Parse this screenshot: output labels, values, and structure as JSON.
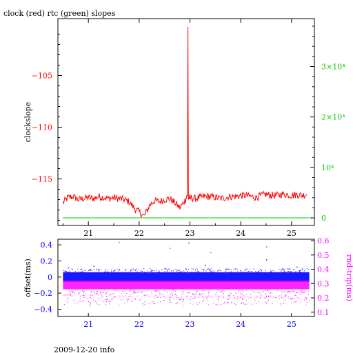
{
  "page": {
    "title": "clock (red) rtc (green) slopes",
    "footer": "2009-12-20 info"
  },
  "colors": {
    "clock": "#ff0000",
    "rtc": "#00cc00",
    "offset": "#0000ff",
    "rndtrip": "#ff00ff",
    "axis": "#000000"
  },
  "chart_data": [
    {
      "type": "line",
      "title": "clock (red) rtc (green) slopes",
      "xlabel": "",
      "ylabel": "clockslope",
      "y2label": "",
      "xlim": [
        20.4,
        25.45
      ],
      "ylim": [
        -119.5,
        -99.5
      ],
      "y2lim": [
        -1500,
        39500
      ],
      "x_ticks": [
        21,
        22,
        23,
        24,
        25
      ],
      "y_ticks": [
        -105,
        -110,
        -115
      ],
      "y2_ticks": [
        {
          "value": 0,
          "label": "0"
        },
        {
          "value": 10000,
          "label": "10⁴"
        },
        {
          "value": 20000,
          "label": "2×10⁴"
        },
        {
          "value": 30000,
          "label": "3×10⁴"
        }
      ],
      "series": [
        {
          "axis": "left",
          "color": "#ff0000",
          "x": [
            20.5,
            20.6,
            20.7,
            20.8,
            20.9,
            21.0,
            21.1,
            21.2,
            21.3,
            21.4,
            21.5,
            21.6,
            21.7,
            21.8,
            21.9,
            22.0,
            22.1,
            22.2,
            22.3,
            22.4,
            22.5,
            22.6,
            22.7,
            22.8,
            22.9,
            22.95,
            22.96,
            22.97,
            23.0,
            23.1,
            23.2,
            23.3,
            23.4,
            23.5,
            23.6,
            23.7,
            23.8,
            23.9,
            24.0,
            24.1,
            24.2,
            24.3,
            24.4,
            24.5,
            24.6,
            24.7,
            24.8,
            24.9,
            25.0,
            25.1,
            25.2,
            25.3
          ],
          "values": [
            -117.3,
            -116.8,
            -116.7,
            -117.0,
            -116.9,
            -116.8,
            -116.9,
            -116.7,
            -116.8,
            -116.9,
            -116.8,
            -116.9,
            -117.0,
            -117.2,
            -117.8,
            -118.2,
            -118.6,
            -117.6,
            -117.1,
            -117.2,
            -117.0,
            -116.9,
            -117.3,
            -117.8,
            -117.1,
            -116.6,
            -100.3,
            -116.9,
            -116.8,
            -116.9,
            -116.8,
            -116.7,
            -116.7,
            -116.8,
            -116.9,
            -116.8,
            -116.7,
            -116.7,
            -116.6,
            -116.6,
            -116.7,
            -116.8,
            -116.6,
            -116.5,
            -116.6,
            -116.6,
            -116.5,
            -116.5,
            -116.6,
            -116.5,
            -116.6,
            -116.5
          ]
        },
        {
          "axis": "right",
          "color": "#00cc00",
          "x": [
            20.5,
            25.35
          ],
          "values": [
            0,
            0
          ]
        }
      ]
    },
    {
      "type": "scatter",
      "xlabel": "",
      "ylabel": "offset(ms)",
      "y2label": "rnd-trip(ms)",
      "xlim": [
        20.4,
        25.45
      ],
      "ylim": [
        -0.49,
        0.47
      ],
      "y2lim": [
        0.07,
        0.61
      ],
      "x_ticks": [
        21,
        22,
        23,
        24,
        25
      ],
      "y_ticks": [
        0.4,
        0.2,
        0,
        -0.2,
        -0.4
      ],
      "y2_ticks": [
        0.6,
        0.5,
        0.4,
        0.3,
        0.2,
        0.1
      ],
      "series": [
        {
          "axis": "left",
          "color": "#0000ff",
          "x_range": [
            20.5,
            25.35
          ],
          "band": [
            -0.06,
            0.06
          ],
          "outliers": [
            [
              20.6,
              0.12
            ],
            [
              21.1,
              0.14
            ],
            [
              21.7,
              -0.13
            ],
            [
              22.5,
              0.11
            ],
            [
              22.97,
              0.43
            ],
            [
              23.3,
              0.15
            ],
            [
              24.5,
              0.22
            ],
            [
              25.1,
              0.13
            ]
          ]
        },
        {
          "axis": "right",
          "color": "#ff00ff",
          "x_range": [
            20.5,
            25.35
          ],
          "band": [
            0.26,
            0.32
          ],
          "spread": [
            0.15,
            0.26
          ],
          "outliers": [
            [
              21.6,
              0.59
            ],
            [
              22.6,
              0.55
            ],
            [
              23.4,
              0.52
            ],
            [
              24.5,
              0.56
            ]
          ]
        }
      ]
    }
  ]
}
